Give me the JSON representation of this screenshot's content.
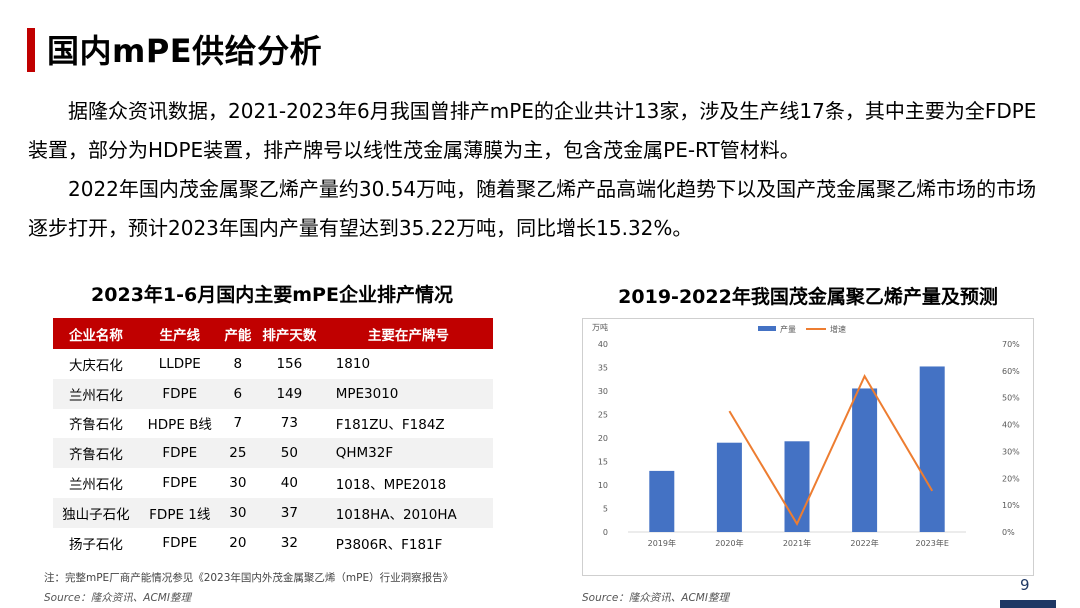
{
  "header": {
    "title": "国内mPE供给分析"
  },
  "paragraphs": [
    "据隆众资讯数据，2021-2023年6月我国曾排产mPE的企业共计13家，涉及生产线17条，其中主要为全FDPE装置，部分为HDPE装置，排产牌号以线性茂金属薄膜为主，包含茂金属PE-RT管材料。",
    "2022年国内茂金属聚乙烯产量约30.54万吨，随着聚乙烯产品高端化趋势下以及国产茂金属聚乙烯市场的市场逐步打开，预计2023年国内产量有望达到35.22万吨，同比增长15.32%。"
  ],
  "table": {
    "title": "2023年1-6月国内主要mPE企业排产情况",
    "headers": [
      "企业名称",
      "生产线",
      "产能",
      "排产天数",
      "主要在产牌号"
    ],
    "rows": [
      [
        "大庆石化",
        "LLDPE",
        "8",
        "156",
        "1810"
      ],
      [
        "兰州石化",
        "FDPE",
        "6",
        "149",
        "MPE3010"
      ],
      [
        "齐鲁石化",
        "HDPE B线",
        "7",
        "73",
        "F181ZU、F184Z"
      ],
      [
        "齐鲁石化",
        "FDPE",
        "25",
        "50",
        "QHM32F"
      ],
      [
        "兰州石化",
        "FDPE",
        "30",
        "40",
        "1018、MPE2018"
      ],
      [
        "独山子石化",
        "FDPE 1线",
        "30",
        "37",
        "1018HA、2010HA"
      ],
      [
        "扬子石化",
        "FDPE",
        "20",
        "32",
        "P3806R、F181F"
      ]
    ]
  },
  "chart_data": {
    "type": "bar",
    "title": "2019-2022年我国茂金属聚乙烯产量及预测",
    "categories": [
      "2019年",
      "2020年",
      "2021年",
      "2022年",
      "2023年E"
    ],
    "series": [
      {
        "name": "产量",
        "type": "bar",
        "axis": "left",
        "color": "#4472c4",
        "values": [
          13,
          19,
          19.3,
          30.54,
          35.22
        ]
      },
      {
        "name": "增速",
        "type": "line",
        "axis": "right",
        "color": "#ed7d31",
        "values": [
          null,
          0.45,
          0.03,
          0.58,
          0.1532
        ]
      }
    ],
    "y_left": {
      "unit": "万吨",
      "ylim": [
        0,
        40
      ],
      "ticks": [
        "0",
        "5",
        "10",
        "15",
        "20",
        "25",
        "30",
        "35",
        "40"
      ]
    },
    "y_right": {
      "ylim": [
        0,
        0.7
      ],
      "ticks": [
        "0%",
        "10%",
        "20%",
        "30%",
        "40%",
        "50%",
        "60%",
        "70%"
      ]
    },
    "legend": "top-center",
    "grid": false
  },
  "footer": {
    "note": "注：完整mPE厂商产能情况参见《2023年国内外茂金属聚乙烯（mPE）行业洞察报告》",
    "source_left": "Source：隆众资讯、ACMI整理",
    "source_right": "Source：隆众资讯、ACMI整理",
    "page_number": "9"
  }
}
